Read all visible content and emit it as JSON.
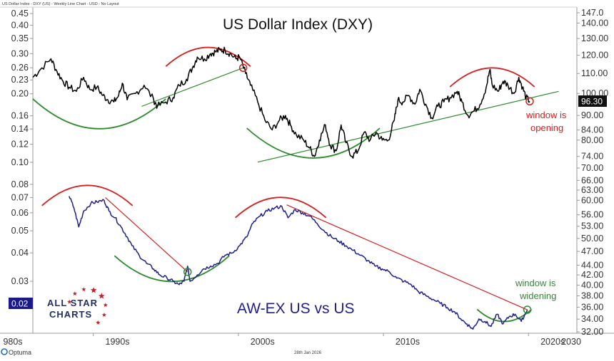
{
  "header": {
    "top_caption": "US Dollar Index - DXY (US) - Weekly Line Chart - USD - No Layout",
    "footer_date": "28th Jan 2026",
    "footer_brand": "Optuma"
  },
  "logo": {
    "line1": "ALL STAR",
    "line2": "CHARTS"
  },
  "chart_data": {
    "type": "line",
    "x_ticks": [
      "980s",
      "1990s",
      "2000s",
      "2010s",
      "2020s",
      "2030"
    ],
    "xlim": [
      1985,
      2030
    ],
    "left_axis": {
      "scale": "log",
      "range": [
        0.018,
        0.46
      ],
      "ticks": [
        "0.45",
        "0.40",
        "0.35",
        "0.30",
        "0.26",
        "0.23",
        "0.20",
        "0.16",
        "0.14",
        "0.12",
        "0.10",
        "0.08",
        "0.07",
        "0.06",
        "0.05",
        "0.04",
        "0.03",
        "0.02"
      ],
      "current_label": "0.02"
    },
    "right_axis": {
      "scale": "log",
      "range": [
        32,
        148
      ],
      "ticks": [
        "147.0",
        "140.00",
        "130.00",
        "120.00",
        "110.00",
        "100.00",
        "96.30",
        "90.00",
        "84.00",
        "80.00",
        "74.00",
        "70.00",
        "66.00",
        "63.00",
        "60.00",
        "56.00",
        "53.00",
        "50.00",
        "47.00",
        "44.00",
        "42.00",
        "40.00",
        "38.00",
        "36.00",
        "34.00",
        "32.00"
      ],
      "current_label": "96.30"
    },
    "series": [
      {
        "name": "US Dollar Index (DXY)",
        "axis": "right",
        "color": "#000000",
        "points": [
          [
            1985.0,
            108
          ],
          [
            1985.6,
            112
          ],
          [
            1986.5,
            118
          ],
          [
            1987.0,
            111
          ],
          [
            1987.5,
            106
          ],
          [
            1988.0,
            103
          ],
          [
            1988.6,
            101
          ],
          [
            1989.2,
            108
          ],
          [
            1989.7,
            102
          ],
          [
            1990.3,
            103
          ],
          [
            1990.8,
            99
          ],
          [
            1991.2,
            97
          ],
          [
            1991.7,
            96
          ],
          [
            1992.1,
            99
          ],
          [
            1992.4,
            105
          ],
          [
            1992.8,
            97
          ],
          [
            1993.5,
            100
          ],
          [
            1994.2,
            104
          ],
          [
            1995.0,
            97
          ],
          [
            1995.3,
            94
          ],
          [
            1996.0,
            96
          ],
          [
            1996.6,
            98
          ],
          [
            1997.1,
            104
          ],
          [
            1997.7,
            107
          ],
          [
            1998.2,
            113
          ],
          [
            1998.6,
            119
          ],
          [
            1999.2,
            118
          ],
          [
            1999.7,
            121
          ],
          [
            2000.1,
            122
          ],
          [
            2000.5,
            123
          ],
          [
            2000.9,
            123
          ],
          [
            2001.3,
            121
          ],
          [
            2001.8,
            118
          ],
          [
            2002.1,
            119
          ],
          [
            2002.6,
            110
          ],
          [
            2003.0,
            104
          ],
          [
            2003.6,
            96
          ],
          [
            2004.2,
            88
          ],
          [
            2004.8,
            84
          ],
          [
            2005.4,
            88
          ],
          [
            2005.9,
            90
          ],
          [
            2006.3,
            86
          ],
          [
            2006.8,
            82
          ],
          [
            2007.4,
            80
          ],
          [
            2007.9,
            77
          ],
          [
            2008.3,
            74
          ],
          [
            2008.7,
            80
          ],
          [
            2009.2,
            86
          ],
          [
            2009.6,
            78
          ],
          [
            2010.1,
            76
          ],
          [
            2010.5,
            86
          ],
          [
            2010.9,
            79
          ],
          [
            2011.4,
            74
          ],
          [
            2011.9,
            76
          ],
          [
            2012.4,
            83
          ],
          [
            2012.9,
            80
          ],
          [
            2013.4,
            83
          ],
          [
            2013.9,
            80
          ],
          [
            2014.4,
            80
          ],
          [
            2014.9,
            88
          ],
          [
            2015.2,
            97
          ],
          [
            2015.6,
            96
          ],
          [
            2016.1,
            99
          ],
          [
            2016.6,
            95
          ],
          [
            2017.0,
            102
          ],
          [
            2017.5,
            95
          ],
          [
            2018.0,
            89
          ],
          [
            2018.5,
            94
          ],
          [
            2019.0,
            96
          ],
          [
            2019.5,
            98
          ],
          [
            2020.1,
            101
          ],
          [
            2020.5,
            96
          ],
          [
            2021.0,
            90
          ],
          [
            2021.5,
            92
          ],
          [
            2022.0,
            95
          ],
          [
            2022.5,
            103
          ],
          [
            2022.8,
            112
          ],
          [
            2023.0,
            104
          ],
          [
            2023.5,
            101
          ],
          [
            2023.9,
            106
          ],
          [
            2024.3,
            104
          ],
          [
            2024.8,
            100
          ],
          [
            2025.2,
            108
          ],
          [
            2025.5,
            103
          ],
          [
            2025.8,
            98
          ],
          [
            2026.1,
            96.3
          ]
        ]
      },
      {
        "name": "AW-EX US vs US",
        "axis": "left",
        "color": "#1f1f8c",
        "points": [
          [
            1988.0,
            0.071
          ],
          [
            1988.4,
            0.063
          ],
          [
            1988.8,
            0.052
          ],
          [
            1989.2,
            0.061
          ],
          [
            1989.8,
            0.066
          ],
          [
            1990.3,
            0.067
          ],
          [
            1990.9,
            0.068
          ],
          [
            1991.3,
            0.061
          ],
          [
            1991.8,
            0.057
          ],
          [
            1992.3,
            0.052
          ],
          [
            1992.8,
            0.047
          ],
          [
            1993.2,
            0.043
          ],
          [
            1993.8,
            0.039
          ],
          [
            1994.4,
            0.036
          ],
          [
            1995.0,
            0.034
          ],
          [
            1995.5,
            0.032
          ],
          [
            1996.1,
            0.031
          ],
          [
            1996.6,
            0.03
          ],
          [
            1997.1,
            0.029
          ],
          [
            1997.5,
            0.03
          ],
          [
            1997.8,
            0.035
          ],
          [
            1998.0,
            0.03
          ],
          [
            1998.6,
            0.032
          ],
          [
            1999.1,
            0.034
          ],
          [
            1999.7,
            0.035
          ],
          [
            2000.3,
            0.036
          ],
          [
            2000.9,
            0.039
          ],
          [
            2001.5,
            0.04
          ],
          [
            2002.1,
            0.043
          ],
          [
            2002.7,
            0.047
          ],
          [
            2003.2,
            0.054
          ],
          [
            2003.8,
            0.058
          ],
          [
            2004.4,
            0.061
          ],
          [
            2005.0,
            0.063
          ],
          [
            2005.6,
            0.064
          ],
          [
            2006.1,
            0.057
          ],
          [
            2006.7,
            0.062
          ],
          [
            2007.3,
            0.06
          ],
          [
            2007.9,
            0.058
          ],
          [
            2008.5,
            0.054
          ],
          [
            2009.1,
            0.05
          ],
          [
            2009.7,
            0.047
          ],
          [
            2010.3,
            0.045
          ],
          [
            2010.9,
            0.043
          ],
          [
            2011.5,
            0.041
          ],
          [
            2012.1,
            0.039
          ],
          [
            2012.7,
            0.037
          ],
          [
            2013.3,
            0.035
          ],
          [
            2013.9,
            0.034
          ],
          [
            2014.5,
            0.033
          ],
          [
            2015.1,
            0.031
          ],
          [
            2015.7,
            0.03
          ],
          [
            2016.3,
            0.029
          ],
          [
            2016.9,
            0.027
          ],
          [
            2017.5,
            0.026
          ],
          [
            2018.1,
            0.025
          ],
          [
            2018.7,
            0.024
          ],
          [
            2019.3,
            0.023
          ],
          [
            2019.9,
            0.022
          ],
          [
            2020.4,
            0.0205
          ],
          [
            2020.9,
            0.0195
          ],
          [
            2021.4,
            0.0185
          ],
          [
            2021.9,
            0.0205
          ],
          [
            2022.4,
            0.02
          ],
          [
            2022.9,
            0.019
          ],
          [
            2023.4,
            0.0215
          ],
          [
            2023.9,
            0.0195
          ],
          [
            2024.4,
            0.021
          ],
          [
            2024.9,
            0.0215
          ],
          [
            2025.4,
            0.02
          ],
          [
            2025.9,
            0.0225
          ]
        ]
      }
    ],
    "trendlines": [
      {
        "axis": "right",
        "color": "#2e8b2e",
        "from": [
          1994.0,
          94
        ],
        "to": [
          2002.4,
          113
        ]
      },
      {
        "axis": "right",
        "color": "#2e8b2e",
        "from": [
          2003.6,
          72
        ],
        "to": [
          2028.5,
          101
        ]
      },
      {
        "axis": "left",
        "color": "#d42020",
        "from": [
          1991.0,
          0.07
        ],
        "to": [
          1997.8,
          0.033
        ]
      },
      {
        "axis": "left",
        "color": "#d42020",
        "from": [
          2006.0,
          0.065
        ],
        "to": [
          2025.9,
          0.0225
        ]
      }
    ],
    "arcs": [
      {
        "axis": "right",
        "color": "#d42020",
        "center": [
          1999.5,
          118
        ],
        "width_years": 7.0,
        "rise": "top"
      },
      {
        "axis": "right",
        "color": "#d42020",
        "center": [
          2023.0,
          107
        ],
        "width_years": 7.0,
        "rise": "top"
      },
      {
        "axis": "right",
        "color": "#2e8b2e",
        "center": [
          1990.5,
          92
        ],
        "width_years": 11.0,
        "rise": "bottom"
      },
      {
        "axis": "right",
        "color": "#2e8b2e",
        "center": [
          2008.2,
          80
        ],
        "width_years": 11.0,
        "rise": "bottom"
      },
      {
        "axis": "left",
        "color": "#d42020",
        "center": [
          1989.5,
          0.07
        ],
        "width_years": 7.5,
        "rise": "top"
      },
      {
        "axis": "left",
        "color": "#d42020",
        "center": [
          2005.5,
          0.062
        ],
        "width_years": 7.5,
        "rise": "top"
      },
      {
        "axis": "left",
        "color": "#2e8b2e",
        "center": [
          1996.5,
          0.035
        ],
        "width_years": 9.5,
        "rise": "bottom"
      },
      {
        "axis": "left",
        "color": "#2e8b2e",
        "center": [
          2024.0,
          0.0215
        ],
        "width_years": 4.5,
        "rise": "bottom"
      }
    ],
    "markers": [
      {
        "axis": "right",
        "color": "#d42020",
        "at": [
          2002.4,
          113
        ]
      },
      {
        "axis": "right",
        "color": "#d42020",
        "at": [
          2026.1,
          96.3
        ]
      },
      {
        "axis": "left",
        "color": "#2e8b2e",
        "at": [
          1997.8,
          0.033
        ]
      },
      {
        "axis": "left",
        "color": "#2e8b2e",
        "at": [
          2025.9,
          0.0225
        ]
      }
    ],
    "annotations": {
      "dxy_title": "US Dollar Index (DXY)",
      "ratio_title": "AW-EX US vs US",
      "window_opening_line1": "window is",
      "window_opening_line2": "opening",
      "window_widening_line1": "window is",
      "window_widening_line2": "widening"
    },
    "colors": {
      "dxy_line": "#000000",
      "ratio_line": "#1f1f8c",
      "title_blue": "#1f1f8c",
      "red": "#d42020",
      "green": "#2e8b2e",
      "dark_badge": "#111111",
      "blue_badge": "#1a1a8c",
      "logo_stars": "#c8202a"
    }
  }
}
